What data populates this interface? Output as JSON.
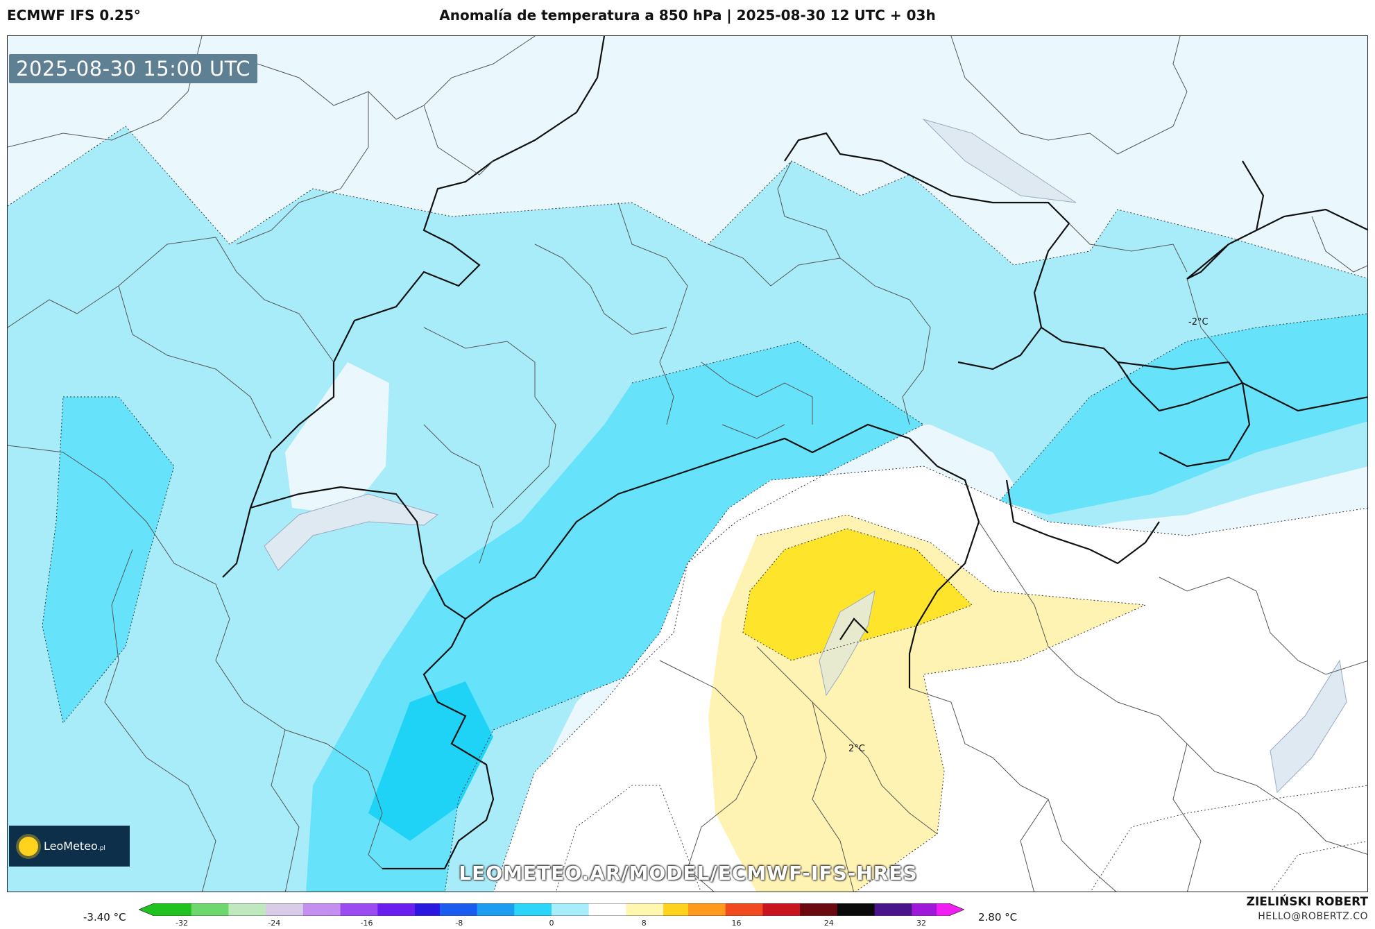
{
  "header": {
    "model": "ECMWF IFS 0.25°",
    "title": "Anomalía de temperatura a 850 hPa | 2025-08-30 12 UTC + 03h"
  },
  "map": {
    "valid_time": "2025-08-30 15:00 UTC",
    "watermark": "LEOMETEO.AR/MODEL/ECMWF-IFS-HRES",
    "contour_labels": [
      "-2°C",
      "2°C"
    ],
    "logo": {
      "name": "LeoMeteo",
      "suffix": ".pl"
    }
  },
  "colorbar": {
    "min_label": "-3.40 °C",
    "max_label": "2.80 °C",
    "ticks": [
      "-32",
      "-24",
      "-16",
      "-8",
      "0",
      "8",
      "16",
      "24",
      "32"
    ],
    "stops": [
      "#1fc21f",
      "#6ed86e",
      "#bfe8bf",
      "#d8cce8",
      "#c48ff0",
      "#9b4cf0",
      "#6a1ff0",
      "#2a18e0",
      "#1a5cf0",
      "#1c9df0",
      "#2cd6f8",
      "#a8eefa",
      "#ffffff",
      "#fff6b0",
      "#ffd21e",
      "#ff9a1e",
      "#f04a1e",
      "#c8141e",
      "#6a0a10",
      "#0a0a0a",
      "#4a148a",
      "#a018d8",
      "#f01ef0"
    ]
  },
  "footer": {
    "author": "ZIELIŃSKI ROBERT",
    "contact": "HELLO@ROBERTZ.CO"
  },
  "colors": {
    "light_blue": "#c8f1fb",
    "blue": "#a8ecfa",
    "mid_blue": "#66e2fa",
    "deep_blue": "#1fd3f7",
    "pale": "#eaf8fd",
    "light_yellow": "#fff3b3",
    "yellow": "#ffe42c"
  }
}
